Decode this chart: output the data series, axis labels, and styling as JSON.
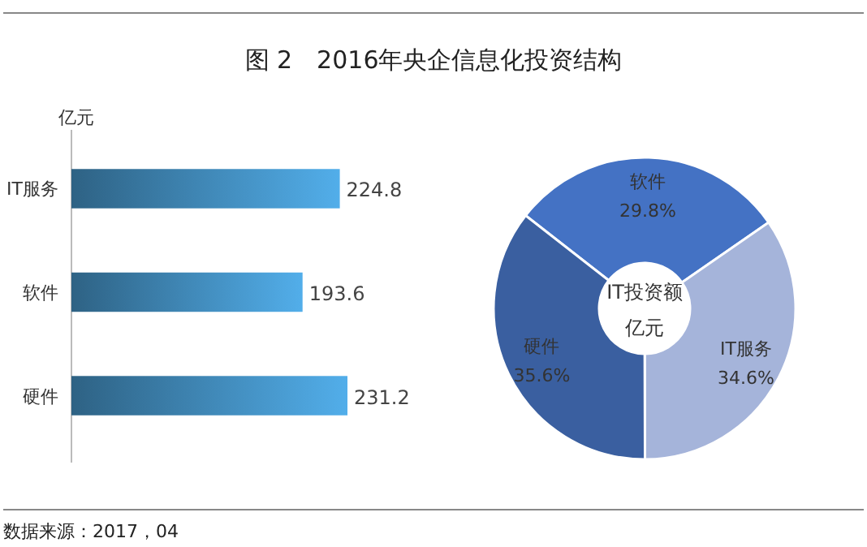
{
  "chart_data": [
    {
      "type": "bar",
      "orientation": "horizontal",
      "title": "图 2　2016年央企信息化投资结构",
      "xlabel": "亿元",
      "categories": [
        "IT服务",
        "软件",
        "硬件"
      ],
      "values": [
        224.8,
        193.6,
        231.2
      ],
      "color": "#52aeea",
      "data_labels": true,
      "tick_labels": "y",
      "annotations": [
        "数据来源：2017，04"
      ]
    },
    {
      "type": "donut",
      "categories": [
        "软件",
        "IT服务",
        "硬件"
      ],
      "values": [
        29.8,
        34.6,
        35.6
      ],
      "colors": [
        "#4472c4",
        "#a5b4da",
        "#3a5fa0"
      ],
      "value_labels": [
        "29.8%",
        "34.6%",
        "35.6%"
      ],
      "annotations": [
        "IT投资额",
        "亿元"
      ]
    }
  ]
}
